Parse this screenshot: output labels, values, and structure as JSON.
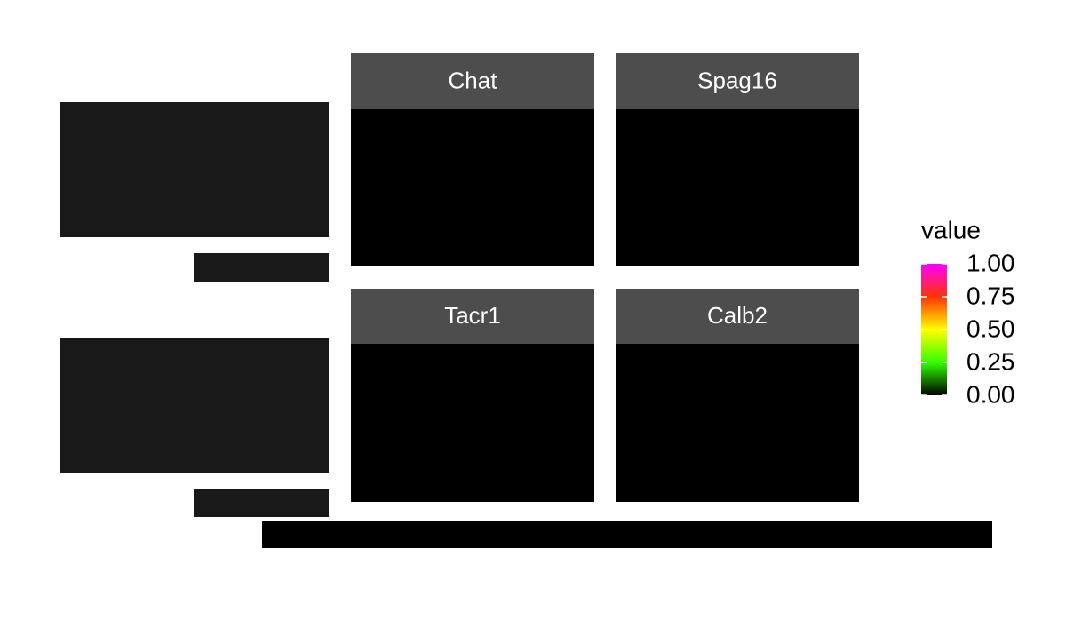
{
  "chart_data": {
    "type": "heatmap",
    "facets": [
      "Chat",
      "Spag16",
      "Tacr1",
      "Calb2"
    ],
    "panel_background": "#000000",
    "strip_color": "#4d4d4d",
    "legend": {
      "title": "value",
      "limits": [
        0,
        1
      ],
      "ticks": [
        {
          "value": 0,
          "label": "0.00"
        },
        {
          "value": 0.25,
          "label": "0.25"
        },
        {
          "value": 0.5,
          "label": "0.50"
        },
        {
          "value": 0.75,
          "label": "0.75"
        },
        {
          "value": 1,
          "label": "1.00"
        }
      ],
      "colors": [
        "#000000",
        "#33ff00",
        "#ffff00",
        "#ff3300",
        "#ff00ff"
      ]
    }
  }
}
